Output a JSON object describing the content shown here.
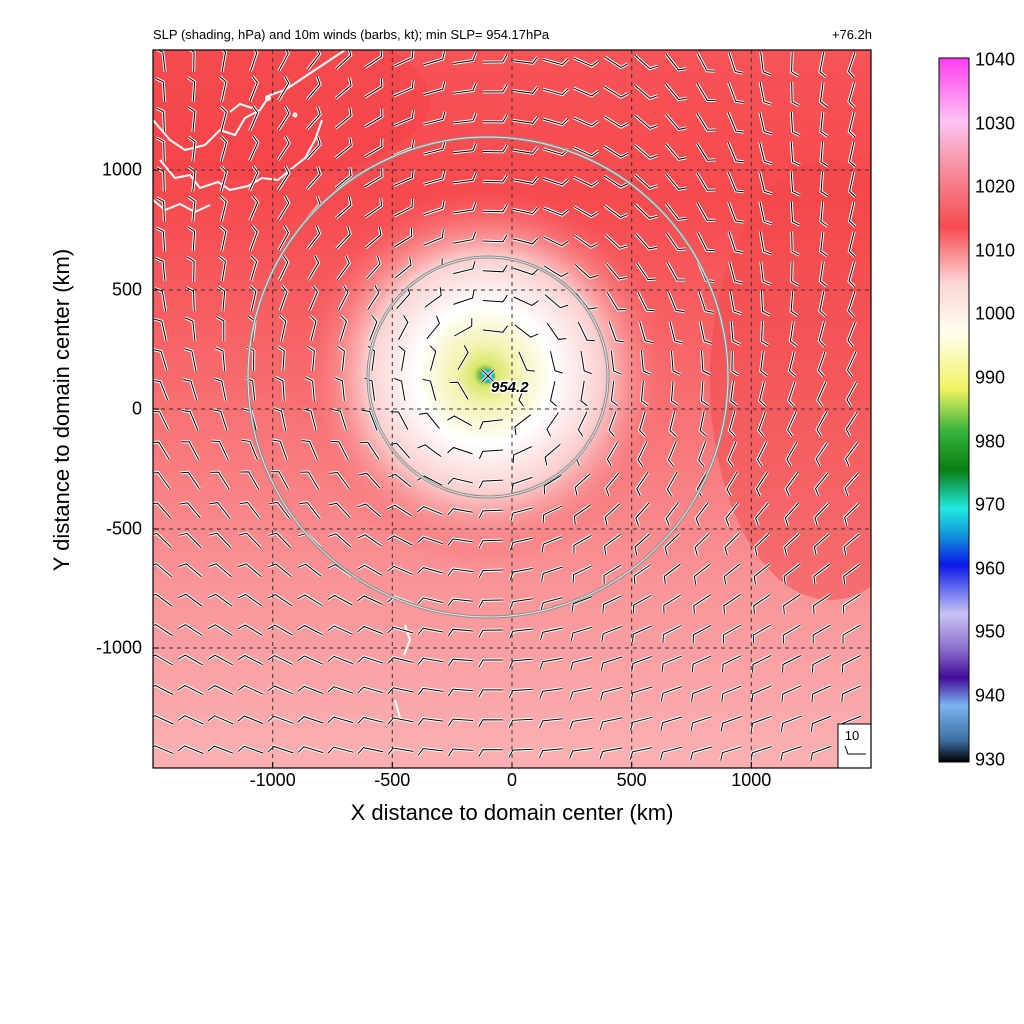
{
  "title": "SLP (shading, hPa) and 10m winds (barbs, kt); min SLP= 954.17hPa",
  "forecast_hour": "+76.2h",
  "xlabel": "X distance to domain center (km)",
  "ylabel": "Y distance to domain center (km)",
  "x_ticks": [
    "-1000",
    "-500",
    "0",
    "500",
    "1000"
  ],
  "y_ticks": [
    "1000",
    "500",
    "0",
    "-500",
    "-1000"
  ],
  "colorbar_ticks": [
    "1040",
    "1030",
    "1020",
    "1010",
    "1000",
    "990",
    "980",
    "970",
    "960",
    "950",
    "940",
    "930"
  ],
  "min_label": "954.2",
  "barb_legend": "10",
  "colors": {
    "background_field": "#f7585d",
    "center_low": "#d7e86b",
    "barb": "#000000",
    "coast": "#ffffff",
    "range_ring": "#9a9a9a"
  },
  "chart_data": {
    "type": "heatmap",
    "title": "SLP (shading, hPa) and 10m winds (barbs, kt); min SLP= 954.17hPa",
    "xlabel": "X distance to domain center (km)",
    "ylabel": "Y distance to domain center (km)",
    "xlim": [
      -1500,
      1500
    ],
    "ylim": [
      -1500,
      1500
    ],
    "grid": true,
    "colorbar_range": [
      930,
      1040
    ],
    "center_km": [
      -100,
      140
    ],
    "min_slp": 954.17,
    "range_rings_km": [
      500,
      1000
    ]
  }
}
